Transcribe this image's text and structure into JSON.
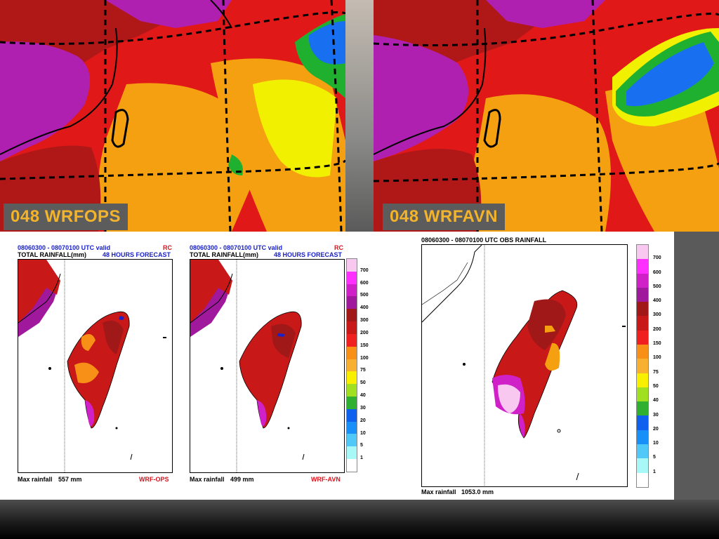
{
  "top_panels": [
    {
      "label": "048  WRFOPS"
    },
    {
      "label": "048  WRFAVN"
    }
  ],
  "panels": [
    {
      "valid": "08060300 - 08070100 UTC valid",
      "tag": "RC",
      "title": "TOTAL RAINFALL(mm)",
      "forecast": "48 HOURS FORECAST",
      "max_label": "Max rainfall",
      "max_value": "557 mm",
      "model": "WRF-OPS"
    },
    {
      "valid": "08060300 - 08070100 UTC valid",
      "tag": "RC",
      "title": "TOTAL RAINFALL(mm)",
      "forecast": "48 HOURS FORECAST",
      "max_label": "Max rainfall",
      "max_value": "499 mm",
      "model": "WRF-AVN"
    },
    {
      "valid": "08060300 - 08070100 UTC OBS RAINFALL",
      "max_label": "Max rainfall",
      "max_value": "1053.0 mm"
    }
  ],
  "legend": {
    "levels": [
      "700",
      "600",
      "500",
      "400",
      "300",
      "200",
      "150",
      "100",
      "75",
      "50",
      "40",
      "30",
      "20",
      "10",
      "5",
      "1"
    ],
    "colors": [
      "#f8c8f0",
      "#ff30ff",
      "#d020c8",
      "#a0189c",
      "#a01818",
      "#c81818",
      "#f02020",
      "#f89018",
      "#f8b030",
      "#f8f000",
      "#a0e020",
      "#30b030",
      "#1060f0",
      "#1890f8",
      "#50c8f8",
      "#a8f8f8",
      "#ffffff"
    ]
  },
  "colors": {
    "purple": "#b020b0",
    "red": "#e01818",
    "darkred": "#b01818",
    "orange": "#f5a010",
    "yellow": "#f0f000",
    "green": "#20b030",
    "blue": "#1870f0",
    "label_text": "#f3b42c"
  }
}
